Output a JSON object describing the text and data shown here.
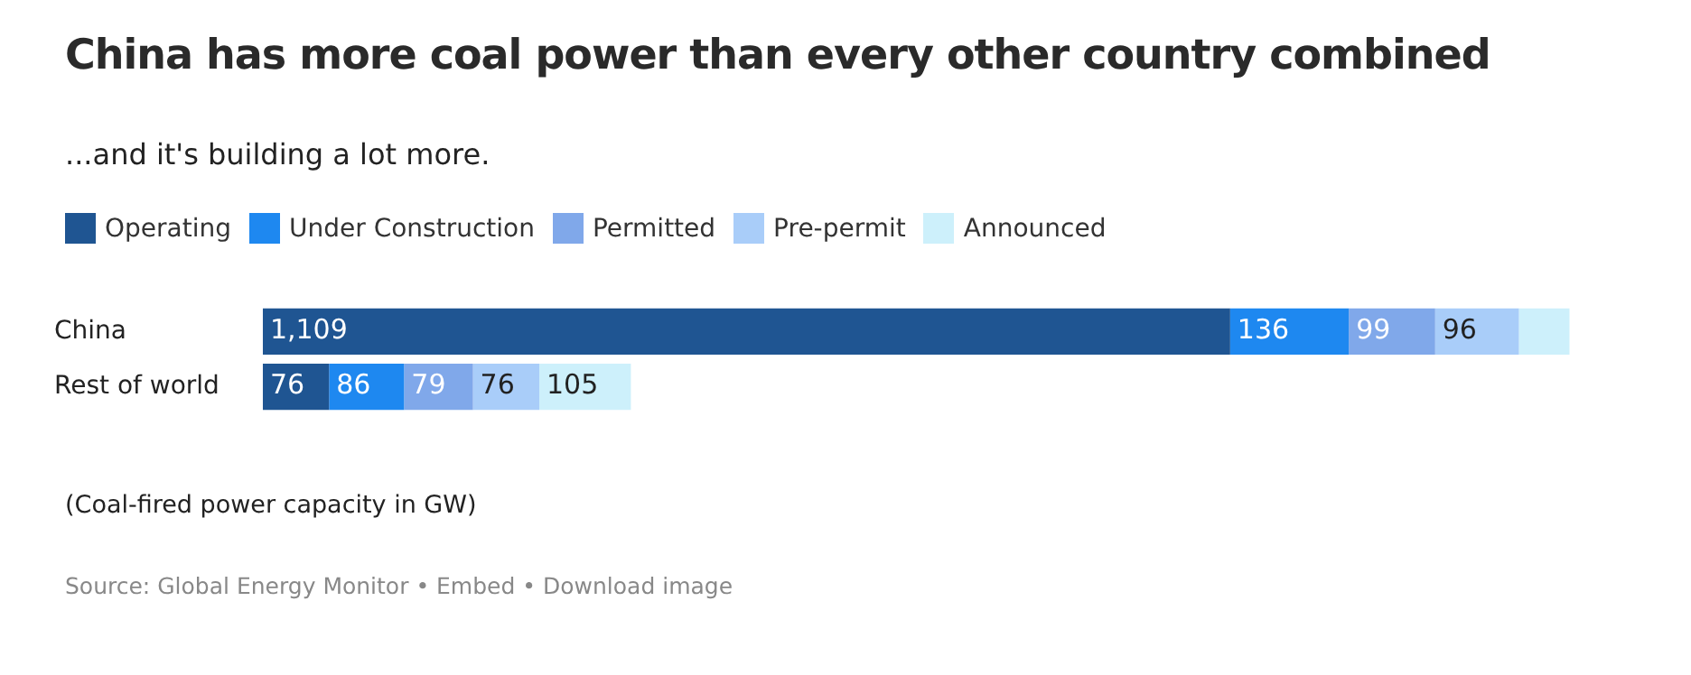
{
  "chart_data": {
    "type": "bar",
    "orientation": "horizontal",
    "stacked": true,
    "title": "China has more coal power than every other country combined",
    "subtitle": "...and it's building a lot more.",
    "categories": [
      "China",
      "Rest of world"
    ],
    "legend": "top left",
    "series": [
      {
        "name": "Operating",
        "color": "#1f5592",
        "values": [
          1109,
          76
        ],
        "value_labels": [
          "1,109",
          "76"
        ]
      },
      {
        "name": "Under Construction",
        "color": "#1e88f0",
        "values": [
          136,
          86
        ],
        "value_labels": [
          "136",
          "86"
        ]
      },
      {
        "name": "Permitted",
        "color": "#80a8ea",
        "values": [
          99,
          79
        ],
        "value_labels": [
          "99",
          "79"
        ]
      },
      {
        "name": "Pre-permit",
        "color": "#a9cdf9",
        "values": [
          96,
          76
        ],
        "value_labels": [
          "96",
          "76"
        ]
      },
      {
        "name": "Announced",
        "color": "#cdf0fb",
        "values": [
          58,
          105
        ],
        "value_labels": [
          null,
          "105"
        ]
      }
    ],
    "annotations": [
      "(Coal-fired power capacity in GW)",
      "Source: Global Energy Monitor • Embed • Download image"
    ]
  }
}
